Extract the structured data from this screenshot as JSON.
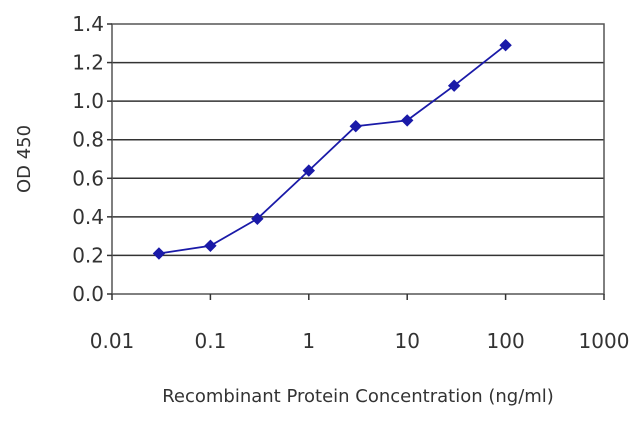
{
  "chart_data": {
    "type": "line",
    "title": "",
    "xlabel": "Recombinant Protein Concentration (ng/ml)",
    "ylabel": "OD 450",
    "x_scale": "log",
    "xlim": [
      0.01,
      1000
    ],
    "ylim": [
      0.0,
      1.4
    ],
    "x_ticks": [
      "0.01",
      "0.1",
      "1",
      "10",
      "100",
      "1000"
    ],
    "y_ticks": [
      "0.0",
      "0.2",
      "0.4",
      "0.6",
      "0.8",
      "1.0",
      "1.2",
      "1.4"
    ],
    "grid": "horizontal",
    "legend": "none",
    "series": [
      {
        "x": [
          0.03,
          0.1,
          0.3,
          1,
          3,
          10,
          30,
          100
        ],
        "y": [
          0.21,
          0.25,
          0.39,
          0.64,
          0.87,
          0.9,
          1.08,
          1.29
        ],
        "color": "#1a1aa8"
      }
    ]
  }
}
